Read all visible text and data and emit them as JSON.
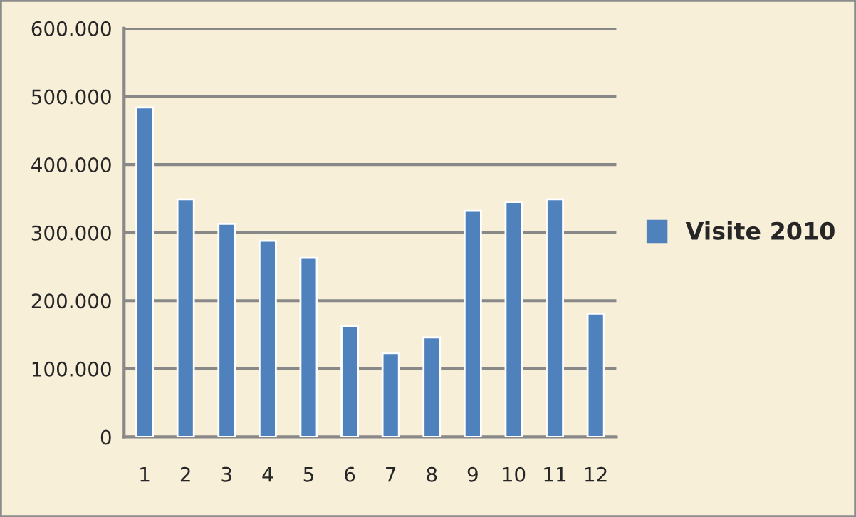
{
  "chart_data": {
    "type": "bar",
    "categories": [
      "1",
      "2",
      "3",
      "4",
      "5",
      "6",
      "7",
      "8",
      "9",
      "10",
      "11",
      "12"
    ],
    "series": [
      {
        "name": "Visite 2010",
        "color": "#4f81bd",
        "values": [
          484000,
          349000,
          313000,
          288000,
          263000,
          163000,
          123000,
          146000,
          332000,
          345000,
          349000,
          181000
        ]
      }
    ],
    "ylim": [
      0,
      600000
    ],
    "yticks": [
      {
        "value": 0,
        "label": "0"
      },
      {
        "value": 100000,
        "label": "100.000"
      },
      {
        "value": 200000,
        "label": "200.000"
      },
      {
        "value": 300000,
        "label": "300.000"
      },
      {
        "value": 400000,
        "label": "400.000"
      },
      {
        "value": 500000,
        "label": "500.000"
      },
      {
        "value": 600000,
        "label": "600.000"
      }
    ],
    "grid": "y",
    "legend": "right"
  }
}
